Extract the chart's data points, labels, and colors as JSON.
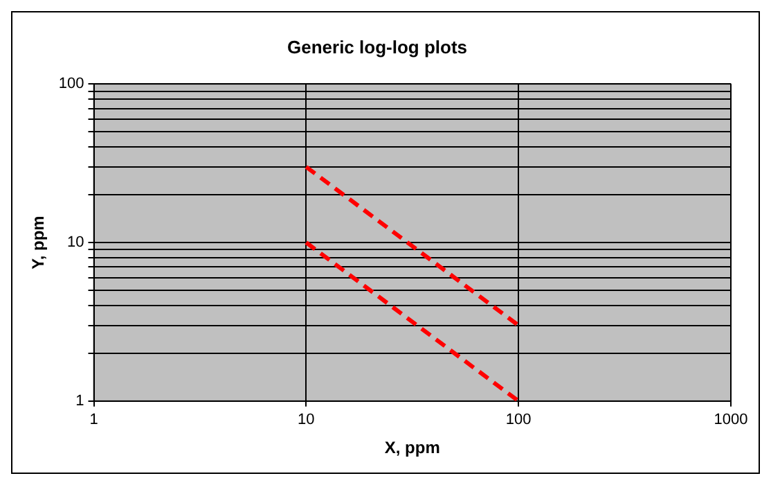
{
  "chart_data": {
    "type": "line",
    "title": "Generic log-log plots",
    "xlabel": "X, ppm",
    "ylabel": "Y, ppm",
    "log": "xy",
    "xlim": [
      1,
      1000
    ],
    "xticks": [
      1,
      10,
      100,
      1000
    ],
    "ylim": [
      1,
      100
    ],
    "yticks": [
      1,
      {
        "value": 2,
        "label": null
      },
      {
        "value": 3,
        "label": null
      },
      {
        "value": 4,
        "label": null
      },
      {
        "value": 5,
        "label": null
      },
      {
        "value": 6,
        "label": null
      },
      {
        "value": 7,
        "label": null
      },
      {
        "value": 8,
        "label": null
      },
      {
        "value": 9,
        "label": null
      },
      10,
      {
        "value": 20,
        "label": null
      },
      {
        "value": 30,
        "label": null
      },
      {
        "value": 40,
        "label": null
      },
      {
        "value": 50,
        "label": null
      },
      {
        "value": 60,
        "label": null
      },
      {
        "value": 70,
        "label": null
      },
      {
        "value": 80,
        "label": null
      },
      {
        "value": 90,
        "label": null
      },
      100
    ],
    "x": [
      10,
      100
    ],
    "series": [
      {
        "color": "#ff0000",
        "values": [
          30,
          3
        ]
      },
      {
        "color": "#ff0000",
        "values": [
          10,
          1
        ]
      }
    ],
    "grid": true,
    "legend": false,
    "marker": "none",
    "line_style": "dashed"
  }
}
